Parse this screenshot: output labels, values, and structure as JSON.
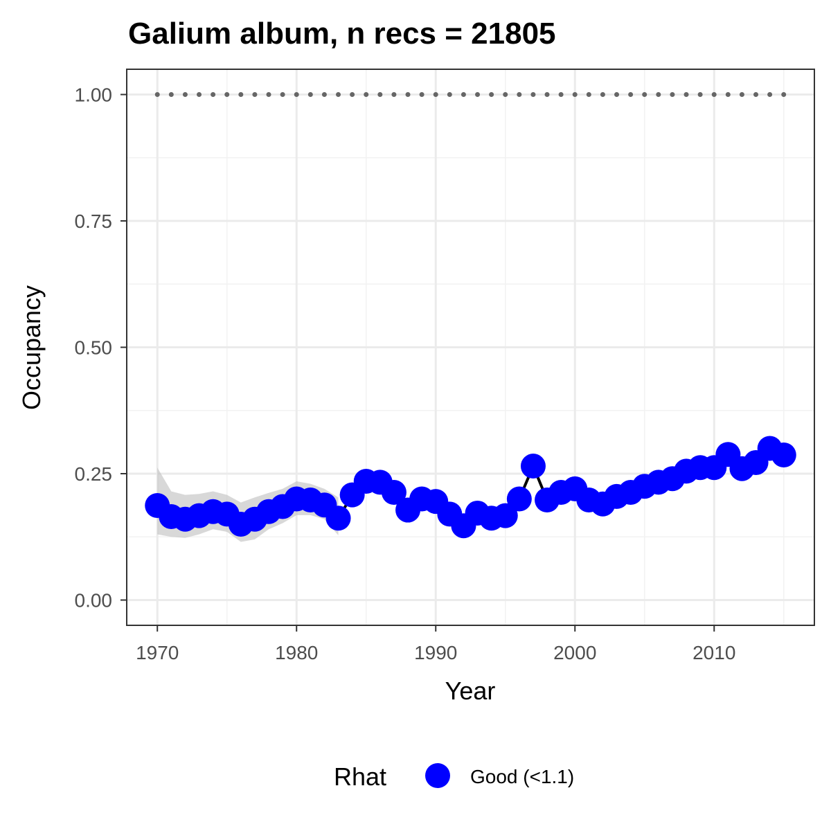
{
  "chart_data": {
    "type": "line",
    "title": "Galium album, n recs = 21805",
    "xlabel": "Year",
    "ylabel": "Occupancy",
    "xlim": [
      1967.8,
      1917.2
    ],
    "ylim": [
      -0.05,
      1.05
    ],
    "x_ticks": [
      1970,
      1980,
      1990,
      2000,
      2010
    ],
    "x_tick_labels": [
      "1970",
      "1980",
      "1990",
      "2000",
      "2010"
    ],
    "y_ticks": [
      0,
      0.25,
      0.5,
      0.75,
      1
    ],
    "y_tick_labels": [
      "0.00",
      "0.25",
      "0.50",
      "0.75",
      "1.00"
    ],
    "grid": true,
    "legend": {
      "title": "Rhat",
      "position": "bottom",
      "entries": [
        {
          "label": "Good (<1.1)",
          "color": "#0000ff"
        }
      ]
    },
    "series": [
      {
        "name": "Good (<1.1)",
        "color": "#0000ff",
        "x": [
          1970,
          1971,
          1972,
          1973,
          1974,
          1975,
          1976,
          1977,
          1978,
          1979,
          1980,
          1981,
          1982,
          1983,
          1984,
          1985,
          1986,
          1987,
          1988,
          1989,
          1990,
          1991,
          1992,
          1993,
          1994,
          1995,
          1996,
          1997,
          1998,
          1999,
          2000,
          2001,
          2002,
          2003,
          2004,
          2005,
          2006,
          2007,
          2008,
          2009,
          2010,
          2011,
          2012,
          2013,
          2014,
          2015
        ],
        "y": [
          0.187,
          0.165,
          0.16,
          0.167,
          0.175,
          0.17,
          0.15,
          0.16,
          0.175,
          0.185,
          0.2,
          0.198,
          0.188,
          0.162,
          0.208,
          0.235,
          0.233,
          0.213,
          0.178,
          0.2,
          0.195,
          0.17,
          0.147,
          0.172,
          0.162,
          0.167,
          0.2,
          0.265,
          0.198,
          0.213,
          0.22,
          0.198,
          0.19,
          0.205,
          0.213,
          0.225,
          0.233,
          0.24,
          0.255,
          0.262,
          0.262,
          0.288,
          0.26,
          0.272,
          0.3,
          0.287
        ]
      }
    ],
    "interval": {
      "x": [
        1970,
        1971,
        1972,
        1973,
        1974,
        1975,
        1976,
        1977,
        1978,
        1979,
        1980,
        1981,
        1982,
        1983
      ],
      "upper": [
        0.262,
        0.215,
        0.208,
        0.21,
        0.215,
        0.208,
        0.193,
        0.203,
        0.212,
        0.22,
        0.235,
        0.23,
        0.22,
        0.203
      ],
      "lower": [
        0.13,
        0.125,
        0.123,
        0.13,
        0.14,
        0.135,
        0.115,
        0.12,
        0.14,
        0.152,
        0.168,
        0.168,
        0.16,
        0.128
      ],
      "color": "#bebebe"
    },
    "reference_line": {
      "y": 1.0,
      "x_start": 1970,
      "x_end": 2015,
      "style": "dotted",
      "color": "#666666"
    }
  }
}
